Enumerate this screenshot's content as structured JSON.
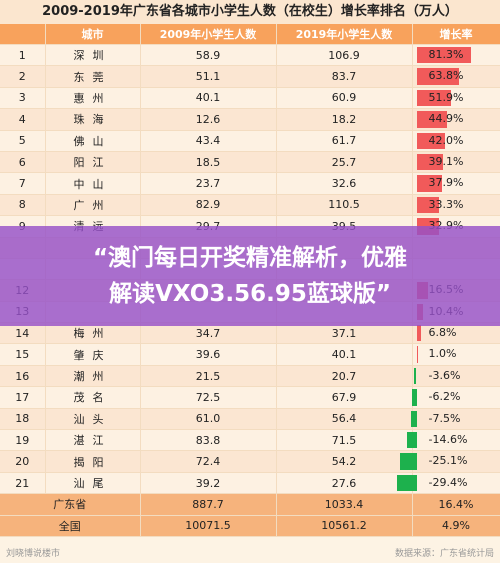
{
  "title": "2009-2019年广东省各城市小学生人数（在校生）增长率排名（万人）",
  "headers": [
    "城市",
    "2009年小学生人数",
    "2019年小学生人数",
    "增长率"
  ],
  "rows": [
    {
      "rank": "1",
      "city": "深圳",
      "y2009": "58.9",
      "y2019": "106.9",
      "rate": "81.3%",
      "value": 81.3
    },
    {
      "rank": "2",
      "city": "东莞",
      "y2009": "51.1",
      "y2019": "83.7",
      "rate": "63.8%",
      "value": 63.8
    },
    {
      "rank": "3",
      "city": "惠州",
      "y2009": "40.1",
      "y2019": "60.9",
      "rate": "51.9%",
      "value": 51.9
    },
    {
      "rank": "4",
      "city": "珠海",
      "y2009": "12.6",
      "y2019": "18.2",
      "rate": "44.9%",
      "value": 44.9
    },
    {
      "rank": "5",
      "city": "佛山",
      "y2009": "43.4",
      "y2019": "61.7",
      "rate": "42.0%",
      "value": 42.0
    },
    {
      "rank": "6",
      "city": "阳江",
      "y2009": "18.5",
      "y2019": "25.7",
      "rate": "39.1%",
      "value": 39.1
    },
    {
      "rank": "7",
      "city": "中山",
      "y2009": "23.7",
      "y2019": "32.6",
      "rate": "37.9%",
      "value": 37.9
    },
    {
      "rank": "8",
      "city": "广州",
      "y2009": "82.9",
      "y2019": "110.5",
      "rate": "33.3%",
      "value": 33.3
    },
    {
      "rank": "9",
      "city": "清远",
      "y2009": "29.7",
      "y2019": "39.5",
      "rate": "32.9%",
      "value": 32.9
    },
    {
      "rank": "",
      "city": "",
      "y2009": "",
      "y2019": "",
      "rate": "",
      "value": 0
    },
    {
      "rank": "",
      "city": "",
      "y2009": "",
      "y2019": "",
      "rate": "",
      "value": 0
    },
    {
      "rank": "12",
      "city": "",
      "y2009": "",
      "y2019": "",
      "rate": "16.5%",
      "value": 16.5
    },
    {
      "rank": "13",
      "city": "",
      "y2009": "",
      "y2019": "",
      "rate": "10.4%",
      "value": 10.4
    },
    {
      "rank": "14",
      "city": "梅州",
      "y2009": "34.7",
      "y2019": "37.1",
      "rate": "6.8%",
      "value": 6.8
    },
    {
      "rank": "15",
      "city": "肇庆",
      "y2009": "39.6",
      "y2019": "40.1",
      "rate": "1.0%",
      "value": 1.0
    },
    {
      "rank": "16",
      "city": "潮州",
      "y2009": "21.5",
      "y2019": "20.7",
      "rate": "-3.6%",
      "value": -3.6
    },
    {
      "rank": "17",
      "city": "茂名",
      "y2009": "72.5",
      "y2019": "67.9",
      "rate": "-6.2%",
      "value": -6.2
    },
    {
      "rank": "18",
      "city": "汕头",
      "y2009": "61.0",
      "y2019": "56.4",
      "rate": "-7.5%",
      "value": -7.5
    },
    {
      "rank": "19",
      "city": "湛江",
      "y2009": "83.8",
      "y2019": "71.5",
      "rate": "-14.6%",
      "value": -14.6
    },
    {
      "rank": "20",
      "city": "揭阳",
      "y2009": "72.4",
      "y2019": "54.2",
      "rate": "-25.1%",
      "value": -25.1
    },
    {
      "rank": "21",
      "city": "汕尾",
      "y2009": "39.2",
      "y2019": "27.6",
      "rate": "-29.4%",
      "value": -29.4
    }
  ],
  "totals": [
    {
      "label": "广东省",
      "y2009": "887.7",
      "y2019": "1033.4",
      "rate": "16.4%"
    },
    {
      "label": "全国",
      "y2009": "10071.5",
      "y2019": "10561.2",
      "rate": "4.9%"
    }
  ],
  "banner": {
    "line1": "“澳门每日开奖精准解析，优雅",
    "line2": "解读VXO3.56.95蓝球版”"
  },
  "footer": {
    "left": "刘晓博说楼市",
    "right": "数据来源：广东省统计局"
  },
  "colors": {
    "positive": "#f15a5a",
    "negative": "#1db14d",
    "header": "#f8a25c"
  }
}
